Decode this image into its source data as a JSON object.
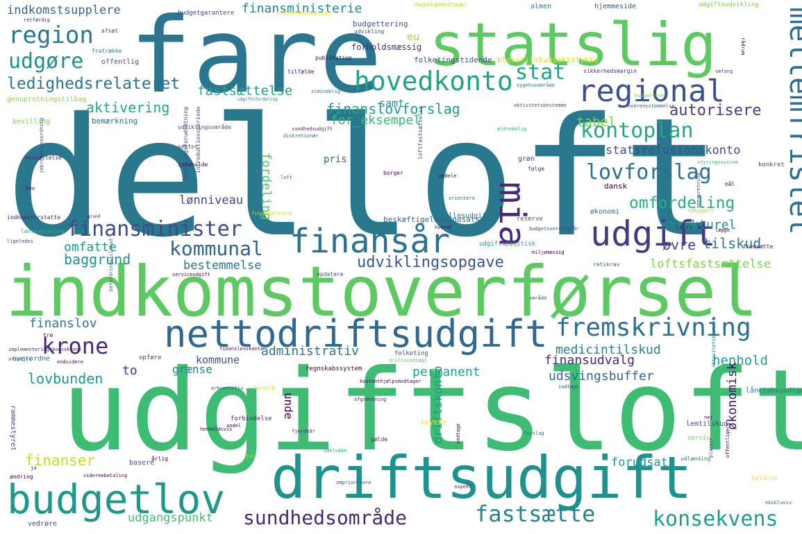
{
  "words": [
    {
      "text": "delloft",
      "color": "#2a788e"
    },
    {
      "text": "udgiftsloft",
      "color": "#3fbc73"
    },
    {
      "text": "fare",
      "color": "#2b758e"
    },
    {
      "text": "indkomstoverførsel",
      "color": "#5ec962"
    },
    {
      "text": "statslig",
      "color": "#5ec962"
    },
    {
      "text": "driftsudgift",
      "color": "#21918c"
    },
    {
      "text": "nettodriftsudgift",
      "color": "#31688e"
    },
    {
      "text": "budgetlov",
      "color": "#1f988b"
    },
    {
      "text": "finansår",
      "color": "#2c728e"
    },
    {
      "text": "regional",
      "color": "#3b528b"
    },
    {
      "text": "mellemfristet",
      "color": "#2d708e"
    },
    {
      "text": "udgift",
      "color": "#443983"
    },
    {
      "text": "mia",
      "color": "#482878"
    },
    {
      "text": "fremskrivning",
      "color": "#2c728e"
    },
    {
      "text": "hovedkonto",
      "color": "#20a386"
    },
    {
      "text": "region",
      "color": "#2a788e"
    },
    {
      "text": "finansminister",
      "color": "#3e4a89"
    },
    {
      "text": "lovforslag",
      "color": "#2d708e"
    },
    {
      "text": "kontoplan",
      "color": "#22a884"
    },
    {
      "text": "sundhedsområde",
      "color": "#482878"
    },
    {
      "text": "konsekvens",
      "color": "#1f9e89"
    },
    {
      "text": "fastsætte",
      "color": "#25848e"
    },
    {
      "text": "krone",
      "color": "#482878"
    },
    {
      "text": "udgøre",
      "color": "#218f8d"
    },
    {
      "text": "kommunal",
      "color": "#33638d"
    },
    {
      "text": "stat",
      "color": "#20a386"
    },
    {
      "text": "ledighedsrelateret",
      "color": "#2c728e"
    },
    {
      "text": "udviklingsopgave",
      "color": "#39568c"
    },
    {
      "text": "omfordeling",
      "color": "#29af7f"
    },
    {
      "text": "indkomstsupplere",
      "color": "#31688e"
    },
    {
      "text": "finansministerie",
      "color": "#25858e"
    },
    {
      "text": "fastsættelse",
      "color": "#20a386"
    },
    {
      "text": "aktivering",
      "color": "#22a884"
    },
    {
      "text": "finanslovforslag",
      "color": "#1fa188"
    },
    {
      "text": "for_eksempel",
      "color": "#3bbb75"
    },
    {
      "text": "autorisere",
      "color": "#433e85"
    },
    {
      "text": "statsrefusionskonto",
      "color": "#3e4c8a"
    },
    {
      "text": "tabel",
      "color": "#7ad151"
    },
    {
      "text": "fordeling",
      "color": "#55c667"
    },
    {
      "text": "lønniveau",
      "color": "#3f4889"
    },
    {
      "text": "omfatte",
      "color": "#1f988b"
    },
    {
      "text": "baggrund",
      "color": "#21918c"
    },
    {
      "text": "bestemmelse",
      "color": "#2d708e"
    },
    {
      "text": "tilskud",
      "color": "#2a788e"
    },
    {
      "text": "strukturel",
      "color": "#21918c"
    },
    {
      "text": "øvre",
      "color": "#3e4a89"
    },
    {
      "text": "loftsfastsættelse",
      "color": "#84d44b"
    },
    {
      "text": "administrativ",
      "color": "#2d708e"
    },
    {
      "text": "medicintilskud",
      "color": "#26828e"
    },
    {
      "text": "finansudvalg",
      "color": "#482878"
    },
    {
      "text": "henhold",
      "color": "#1fa088"
    },
    {
      "text": "permanent",
      "color": "#20a386"
    },
    {
      "text": "udsvingsbuffer",
      "color": "#31688e"
    },
    {
      "text": "finanslov",
      "color": "#2a788e"
    },
    {
      "text": "lovbunden",
      "color": "#1f988b"
    },
    {
      "text": "grænse",
      "color": "#25848e"
    },
    {
      "text": "kommune",
      "color": "#3a548c"
    },
    {
      "text": "to",
      "color": "#46327e"
    },
    {
      "text": "unde",
      "color": "#440154"
    },
    {
      "text": "driftskonto",
      "color": "#1e9b8a"
    },
    {
      "text": "økonomisk",
      "color": "#471164"
    },
    {
      "text": "finanser",
      "color": "#c0df25"
    },
    {
      "text": "forudsat",
      "color": "#1f988b"
    },
    {
      "text": "udgangspunkt",
      "color": "#3fbc73"
    },
    {
      "text": "samt",
      "color": "#21918c"
    },
    {
      "text": "pris",
      "color": "#31688e"
    },
    {
      "text": "eu",
      "color": "#a0da39"
    },
    {
      "text": "budgettering",
      "color": "#39568c"
    },
    {
      "text": "forholdsmæssig",
      "color": "#482878"
    },
    {
      "text": "folketingstidende",
      "color": "#3e4a89"
    },
    {
      "text": "blokstilskudsaktstykke",
      "color": "#d8e219"
    },
    {
      "text": "almen",
      "color": "#2a788e"
    },
    {
      "text": "hjemmeside",
      "color": "#39568c"
    },
    {
      "text": "udgiftsudvikling",
      "color": "#7ad151"
    },
    {
      "text": "dagpengemodtager",
      "color": "#b5de2b"
    },
    {
      "text": "budgetgarantere",
      "color": "#3e4a89"
    },
    {
      "text": "retfærdig",
      "color": "#482878"
    },
    {
      "text": "holdbarhedsudvalget",
      "color": "#fde725"
    },
    {
      "text": "udvikling",
      "color": "#3e4a89"
    },
    {
      "text": "publikation",
      "color": "#440154"
    },
    {
      "text": "offentlig",
      "color": "#3b528b"
    },
    {
      "text": "fratrække",
      "color": "#2a788e"
    },
    {
      "text": "afsæt",
      "color": "#3e4a89"
    },
    {
      "text": "tilfælde",
      "color": "#471164"
    },
    {
      "text": "almindelig",
      "color": "#2a788e"
    },
    {
      "text": "sikkerhedsmargin",
      "color": "#482878"
    },
    {
      "text": "omfang",
      "color": "#3e4a89"
    },
    {
      "text": "sygehusområde",
      "color": "#2a788e"
    },
    {
      "text": "budgettere",
      "color": "#84d44b"
    },
    {
      "text": "aktivitetsbestemme",
      "color": "#3b528b"
    },
    {
      "text": "overensstemmelse",
      "color": "#3b528b"
    },
    {
      "text": "genopretningstilbag",
      "color": "#95d840"
    },
    {
      "text": "bevilling",
      "color": "#7ad151"
    },
    {
      "text": "bemærkning",
      "color": "#31688e"
    },
    {
      "text": "udviklingsområde",
      "color": "#3e4a89"
    },
    {
      "text": "sundhedsudgift",
      "color": "#482878"
    },
    {
      "text": "diskretionær",
      "color": "#31688e"
    },
    {
      "text": "ældrebolig",
      "color": "#2db27d"
    },
    {
      "text": "hensættelse",
      "color": "#482878"
    },
    {
      "text": "sektor",
      "color": "#3e4a89"
    },
    {
      "text": "indeholde",
      "color": "#440154"
    },
    {
      "text": "loft",
      "color": "#31688e"
    },
    {
      "text": "borger",
      "color": "#440154"
    },
    {
      "text": "opdele",
      "color": "#440154"
    },
    {
      "text": "grøn",
      "color": "#3e4a89"
    },
    {
      "text": "følge",
      "color": "#482878"
    },
    {
      "text": "styringssystem",
      "color": "#3bbb75"
    },
    {
      "text": "konkret",
      "color": "#3e4a89"
    },
    {
      "text": "lov",
      "color": "#440154"
    },
    {
      "text": "mål",
      "color": "#482878"
    },
    {
      "text": "dansk",
      "color": "#440154"
    },
    {
      "text": "orientere",
      "color": "#2a788e"
    },
    {
      "text": "økonomi",
      "color": "#31688e"
    },
    {
      "text": "nybyggeri",
      "color": "#a0da39"
    },
    {
      "text": "indkomsterstatte",
      "color": "#482878"
    },
    {
      "text": "lønregulering",
      "color": "#2db27d"
    },
    {
      "text": "ligeledes",
      "color": "#3e4a89"
    },
    {
      "text": "finanspolitisk",
      "color": "#c0df25"
    },
    {
      "text": "beskæftigelsesindsats",
      "color": "#31688e"
    },
    {
      "text": "fællesudgift",
      "color": "#31688e"
    },
    {
      "text": "reserve",
      "color": "#39568c"
    },
    {
      "text": "hvoraf",
      "color": "#440154"
    },
    {
      "text": "budgetoverslagsår",
      "color": "#3e4a89"
    },
    {
      "text": "lægge",
      "color": "#440154"
    },
    {
      "text": "udgiftspolitisk",
      "color": "#1fa088"
    },
    {
      "text": "ble",
      "color": "#c0df25"
    },
    {
      "text": "miljømæssig",
      "color": "#440154"
    },
    {
      "text": "sid",
      "color": "#3e4a89"
    },
    {
      "text": "fremsætte",
      "color": "#482878"
    },
    {
      "text": "serviceudgift",
      "color": "#440154"
    },
    {
      "text": "opdatere",
      "color": "#3e4a89"
    },
    {
      "text": "retskrav",
      "color": "#31688e"
    },
    {
      "text": "område",
      "color": "#3e4a89"
    },
    {
      "text": "tre",
      "color": "#440154"
    },
    {
      "text": "implementeringskonsekvens",
      "color": "#482878"
    },
    {
      "text": "afspejle",
      "color": "#39568c"
    },
    {
      "text": "overordne",
      "color": "#2a788e"
    },
    {
      "text": "opføre",
      "color": "#3e4a89"
    },
    {
      "text": "endvidere",
      "color": "#440154"
    },
    {
      "text": "finanslovskonto",
      "color": "#440154"
    },
    {
      "text": "folketing",
      "color": "#39568c"
    },
    {
      "text": "driftsindtægt",
      "color": "#5ec962"
    },
    {
      "text": "regnskabssystem",
      "color": "#440154"
    },
    {
      "text": "indtægt",
      "color": "#3e4a89"
    },
    {
      "text": "lånetabsgodtgørelse",
      "color": "#2a788e"
    },
    {
      "text": "erhvervsliv",
      "color": "#3e4a89"
    },
    {
      "text": "foreslå",
      "color": "#c0df25"
    },
    {
      "text": "kontanthjælpsmodtager",
      "color": "#440154"
    },
    {
      "text": "afgrænsning",
      "color": "#482878"
    },
    {
      "text": "nej",
      "color": "#440154"
    },
    {
      "text": "forbindelse",
      "color": "#482878"
    },
    {
      "text": "andel",
      "color": "#440154"
    },
    {
      "text": "fjerdeår",
      "color": "#482878"
    },
    {
      "text": "gælde",
      "color": "#482878"
    },
    {
      "text": "knytte",
      "color": "#fde725"
    },
    {
      "text": "forslag",
      "color": "#31688e"
    },
    {
      "text": "lemtilskud",
      "color": "#3e4a89"
    },
    {
      "text": "service",
      "color": "#7ad151"
    },
    {
      "text": "rammestyret",
      "color": "#3e4a89"
    },
    {
      "text": "henholdsvis",
      "color": "#440154"
    },
    {
      "text": "tale",
      "color": "#c0df25"
    },
    {
      "text": "udelukke",
      "color": "#2db27d"
    },
    {
      "text": "udlænding",
      "color": "#2a788e"
    },
    {
      "text": "basere",
      "color": "#3e4a89"
    },
    {
      "text": "årlig",
      "color": "#440154"
    },
    {
      "text": "ja",
      "color": "#440154"
    },
    {
      "text": "ændring",
      "color": "#440154"
    },
    {
      "text": "videreebetaling",
      "color": "#440154"
    },
    {
      "text": "omprioritere",
      "color": "#3e4a89"
    },
    {
      "text": "aspekt",
      "color": "#482878"
    },
    {
      "text": "balance",
      "color": "#fde725"
    },
    {
      "text": "vedrøre",
      "color": "#3e4a89"
    },
    {
      "text": "eksklusiv",
      "color": "#31688e"
    },
    {
      "text": "placere",
      "color": "#3e4a89"
    },
    {
      "text": "offentligere",
      "color": "#440154"
    },
    {
      "text": "beregningsforudsætning",
      "color": "#3e4a89"
    },
    {
      "text": "introduktionsperiode",
      "color": "#3e4a89"
    },
    {
      "text": "befordringstilskud",
      "color": "#31688e"
    },
    {
      "text": "jobrotationsordning",
      "color": "#3e4a89"
    },
    {
      "text": "loftfastsættelse",
      "color": "#3e4a89"
    },
    {
      "text": "rådrum",
      "color": "#440154"
    },
    {
      "text": "vedtage",
      "color": "#440154"
    },
    {
      "text": "genopretning",
      "color": "#3e4a89"
    },
    {
      "text": "aktivitetsbestemt",
      "color": "#2a788e"
    },
    {
      "text": "grund",
      "color": "#440154"
    },
    {
      "text": "udgiftsfordeling",
      "color": "#2a788e"
    },
    {
      "text": "refusionsordning",
      "color": "#31688e"
    }
  ]
}
